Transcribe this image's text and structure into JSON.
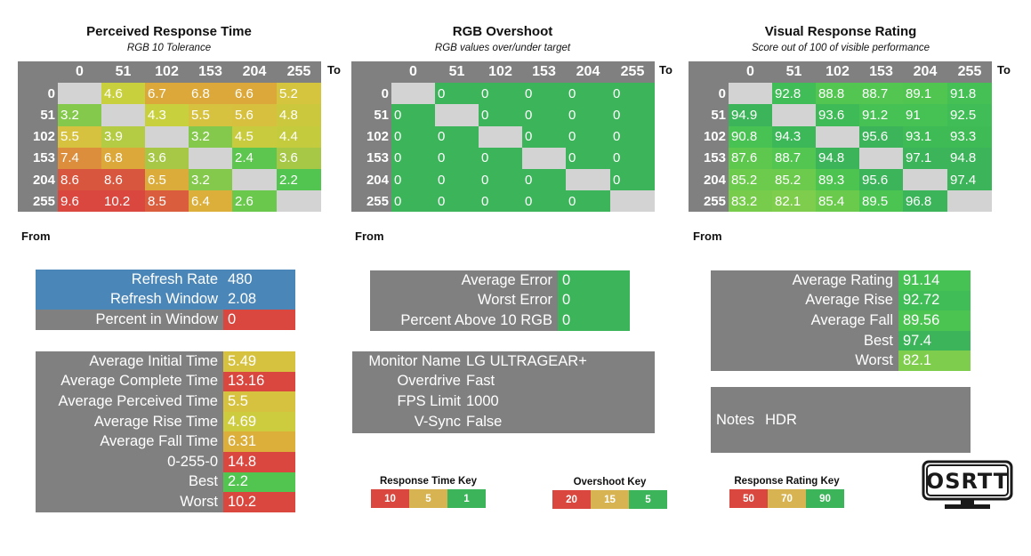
{
  "colors": {
    "blue": "#4a86b8",
    "grey": "#808080",
    "diag": "#d3d3d3",
    "red": "#d9473f",
    "green_dark": "#3cb55a",
    "gold": "#d7b352",
    "green_mid": "#4cc753"
  },
  "prt": {
    "title": "Perceived Response Time",
    "subtitle": "RGB 10 Tolerance",
    "to_label": "To",
    "from_label": "From",
    "cols": [
      "0",
      "51",
      "102",
      "153",
      "204",
      "255"
    ],
    "rows": [
      {
        "label": "0",
        "cells": [
          null,
          "4.6",
          "6.7",
          "6.8",
          "6.6",
          "5.2"
        ],
        "colors": [
          null,
          "#c8d03e",
          "#dca83a",
          "#dca83a",
          "#dca83a",
          "#d4c43e"
        ]
      },
      {
        "label": "51",
        "cells": [
          "3.2",
          null,
          "4.3",
          "5.5",
          "5.6",
          "4.8"
        ],
        "colors": [
          "#84c94c",
          null,
          "#c8d03e",
          "#d6c23e",
          "#d7c03e",
          "#ccc83e"
        ]
      },
      {
        "label": "102",
        "cells": [
          "5.5",
          "3.9",
          null,
          "3.2",
          "4.5",
          "4.4"
        ],
        "colors": [
          "#d6c23e",
          "#b4cc44",
          null,
          "#84c94c",
          "#c8cb3e",
          "#c4cc3e"
        ]
      },
      {
        "label": "153",
        "cells": [
          "7.4",
          "6.8",
          "3.6",
          null,
          "2.4",
          "3.6"
        ],
        "colors": [
          "#dd8e3c",
          "#dca83a",
          "#a6c846",
          null,
          "#5cc64e",
          "#a6c846"
        ]
      },
      {
        "label": "204",
        "cells": [
          "8.6",
          "8.6",
          "6.5",
          "3.2",
          null,
          "2.2"
        ],
        "colors": [
          "#d9563e",
          "#d9563e",
          "#dcac3a",
          "#84c94c",
          null,
          "#52c450"
        ]
      },
      {
        "label": "255",
        "cells": [
          "9.6",
          "10.2",
          "8.5",
          "6.4",
          "2.6",
          null
        ],
        "colors": [
          "#d9473f",
          "#d9473f",
          "#da5e3e",
          "#dcae3a",
          "#6ac84c",
          null
        ]
      }
    ]
  },
  "ovs": {
    "title": "RGB Overshoot",
    "subtitle": "RGB values over/under target",
    "to_label": "To",
    "from_label": "From",
    "cols": [
      "0",
      "51",
      "102",
      "153",
      "204",
      "255"
    ],
    "rows": [
      {
        "label": "0",
        "cells": [
          null,
          "0",
          "0",
          "0",
          "0",
          "0"
        ]
      },
      {
        "label": "51",
        "cells": [
          "0",
          null,
          "0",
          "0",
          "0",
          "0"
        ]
      },
      {
        "label": "102",
        "cells": [
          "0",
          "0",
          null,
          "0",
          "0",
          "0"
        ]
      },
      {
        "label": "153",
        "cells": [
          "0",
          "0",
          "0",
          null,
          "0",
          "0"
        ]
      },
      {
        "label": "204",
        "cells": [
          "0",
          "0",
          "0",
          "0",
          null,
          "0"
        ]
      },
      {
        "label": "255",
        "cells": [
          "0",
          "0",
          "0",
          "0",
          "0",
          null
        ]
      }
    ]
  },
  "vrr": {
    "title": "Visual Response Rating",
    "subtitle": "Score out of 100 of visible performance",
    "to_label": "To",
    "from_label": "From",
    "cols": [
      "0",
      "51",
      "102",
      "153",
      "204",
      "255"
    ],
    "rows": [
      {
        "label": "0",
        "cells": [
          null,
          "92.8",
          "88.8",
          "88.7",
          "89.1",
          "91.8"
        ],
        "colors": [
          null,
          "#40bd56",
          "#52c650",
          "#52c650",
          "#50c550",
          "#44c054"
        ]
      },
      {
        "label": "51",
        "cells": [
          "94.9",
          null,
          "93.6",
          "91.2",
          "91",
          "92.5"
        ],
        "colors": [
          "#3cb55a",
          null,
          "#3eba57",
          "#46c153",
          "#46c153",
          "#40bd56"
        ]
      },
      {
        "label": "102",
        "cells": [
          "90.8",
          "94.3",
          null,
          "95.6",
          "93.1",
          "93.3"
        ],
        "colors": [
          "#48c252",
          "#3db858",
          null,
          "#3cb55a",
          "#3fbb56",
          "#3fbb56"
        ]
      },
      {
        "label": "153",
        "cells": [
          "87.6",
          "88.7",
          "94.8",
          null,
          "97.1",
          "94.8"
        ],
        "colors": [
          "#5ec84e",
          "#52c650",
          "#3cb55a",
          null,
          "#3cb55a",
          "#3cb55a"
        ]
      },
      {
        "label": "204",
        "cells": [
          "85.2",
          "85.2",
          "89.3",
          "95.6",
          null,
          "97.4"
        ],
        "colors": [
          "#6cca4c",
          "#6cca4c",
          "#4ec450",
          "#3cb55a",
          null,
          "#3cb55a"
        ]
      },
      {
        "label": "255",
        "cells": [
          "83.2",
          "82.1",
          "85.4",
          "89.5",
          "96.8",
          null
        ],
        "colors": [
          "#78cc4c",
          "#7ecd4c",
          "#6aca4c",
          "#4cc451",
          "#3cb55a",
          null
        ]
      }
    ]
  },
  "refresh": {
    "rows": [
      {
        "label": "Refresh Rate",
        "value": "480",
        "label_bg": "#4a86b8",
        "value_bg": "#4a86b8"
      },
      {
        "label": "Refresh Window",
        "value": "2.08",
        "label_bg": "#4a86b8",
        "value_bg": "#4a86b8"
      },
      {
        "label": "Percent in Window",
        "value": "0",
        "label_bg": "#808080",
        "value_bg": "#d9473f"
      }
    ]
  },
  "times": {
    "rows": [
      {
        "label": "Average Initial Time",
        "value": "5.49",
        "value_bg": "#d6c23e"
      },
      {
        "label": "Average Complete Time",
        "value": "13.16",
        "value_bg": "#d9473f"
      },
      {
        "label": "Average Perceived Time",
        "value": "5.5",
        "value_bg": "#d6c23e"
      },
      {
        "label": "Average Rise Time",
        "value": "4.69",
        "value_bg": "#cccc3e"
      },
      {
        "label": "Average Fall Time",
        "value": "6.31",
        "value_bg": "#dcae3a"
      },
      {
        "label": "0-255-0",
        "value": "14.8",
        "value_bg": "#d9473f"
      },
      {
        "label": "Best",
        "value": "2.2",
        "value_bg": "#52c450"
      },
      {
        "label": "Worst",
        "value": "10.2",
        "value_bg": "#d9473f"
      }
    ]
  },
  "errors": {
    "rows": [
      {
        "label": "Average Error",
        "value": "0"
      },
      {
        "label": "Worst Error",
        "value": "0"
      },
      {
        "label": "Percent Above 10 RGB",
        "value": "0"
      }
    ]
  },
  "monitor": {
    "rows": [
      {
        "label": "Monitor Name",
        "value": "LG ULTRAGEAR+"
      },
      {
        "label": "Overdrive",
        "value": "Fast"
      },
      {
        "label": "FPS Limit",
        "value": "1000"
      },
      {
        "label": "V-Sync",
        "value": "False"
      }
    ]
  },
  "ratings": {
    "rows": [
      {
        "label": "Average Rating",
        "value": "91.14",
        "value_bg": "#46c153"
      },
      {
        "label": "Average Rise",
        "value": "92.72",
        "value_bg": "#40bd56"
      },
      {
        "label": "Average Fall",
        "value": "89.56",
        "value_bg": "#4cc451"
      },
      {
        "label": "Best",
        "value": "97.4",
        "value_bg": "#3cb55a"
      },
      {
        "label": "Worst",
        "value": "82.1",
        "value_bg": "#7ecd4c"
      }
    ]
  },
  "notes": {
    "label": "Notes",
    "value": "HDR"
  },
  "keys": {
    "response_time": {
      "title": "Response Time Key",
      "values": [
        "10",
        "5",
        "1"
      ]
    },
    "overshoot": {
      "title": "Overshoot Key",
      "values": [
        "20",
        "15",
        "5"
      ]
    },
    "response_rating": {
      "title": "Response Rating Key",
      "values": [
        "50",
        "70",
        "90"
      ]
    }
  },
  "logo": {
    "text": "OSRTT"
  }
}
